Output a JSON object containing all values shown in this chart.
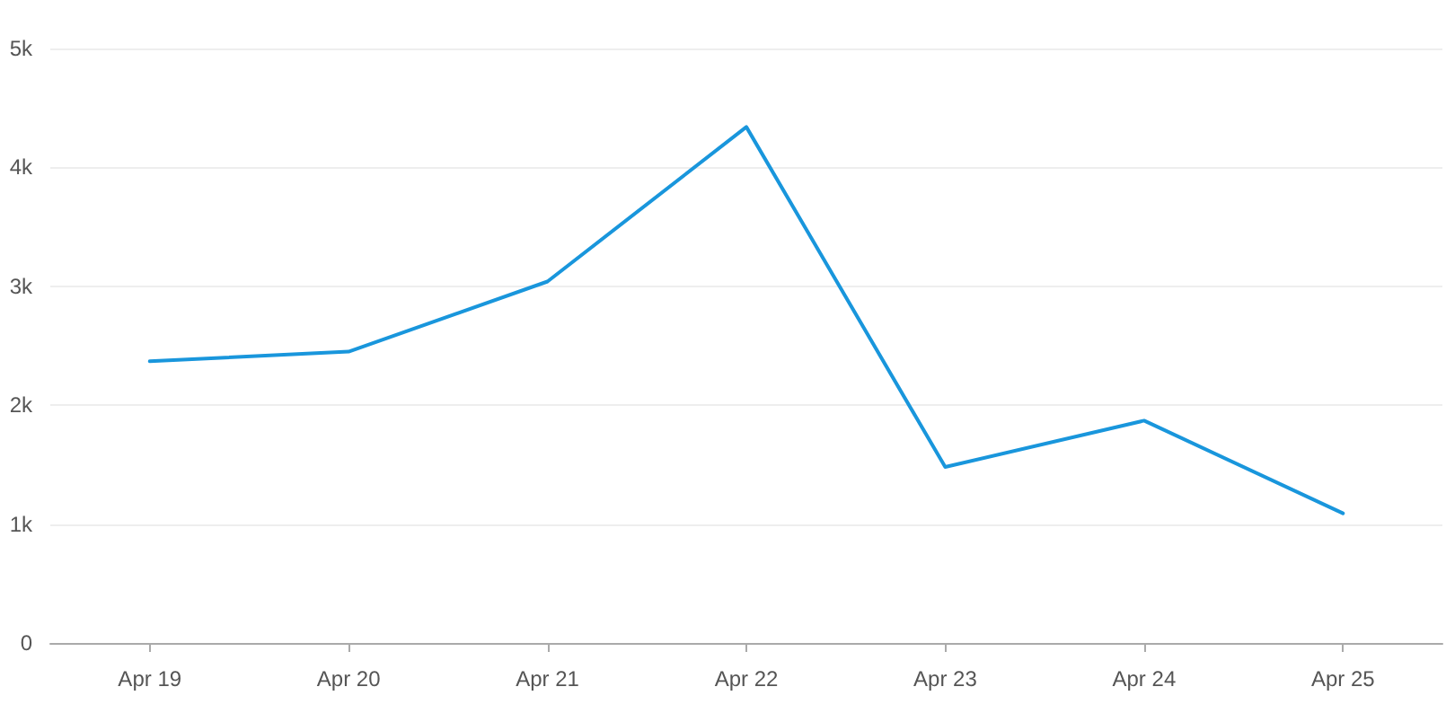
{
  "chart_data": {
    "type": "line",
    "categories": [
      "Apr 19",
      "Apr 20",
      "Apr 21",
      "Apr 22",
      "Apr 23",
      "Apr 24",
      "Apr 25"
    ],
    "series": [
      {
        "color": "#1996dc",
        "values": [
          2370,
          2450,
          3040,
          4340,
          1480,
          1870,
          1090
        ]
      }
    ],
    "ylim": [
      0,
      5000
    ],
    "yticks": [
      0,
      {
        "value": 1000,
        "label": "1k"
      },
      {
        "value": 2000,
        "label": "2k"
      },
      {
        "value": 3000,
        "label": "3k"
      },
      {
        "value": 4000,
        "label": "4k"
      },
      {
        "value": 5000,
        "label": "5k"
      }
    ],
    "grid": "y",
    "marker": "none",
    "line_style": "solid"
  }
}
